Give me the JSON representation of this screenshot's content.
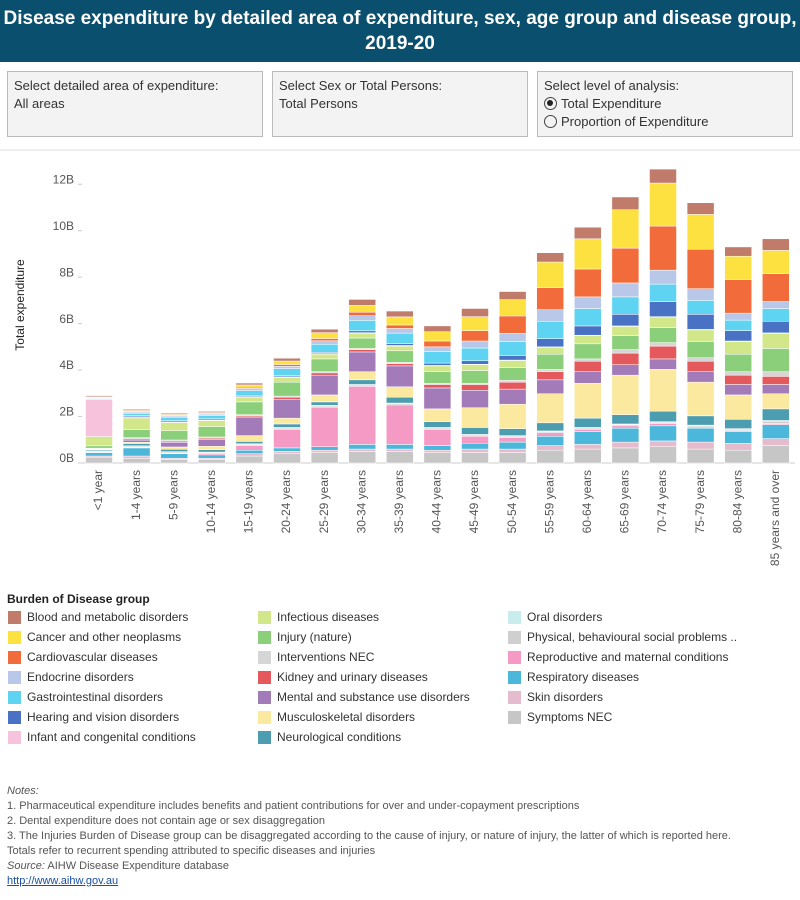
{
  "header": {
    "title": "Disease expenditure by detailed area of expenditure, sex, age group and disease group, 2019-20"
  },
  "filters": [
    {
      "label": "Select detailed area of expenditure:",
      "value": "All areas"
    },
    {
      "label": "Select Sex or Total Persons:",
      "value": "Total Persons"
    },
    {
      "label": "Select level of analysis:",
      "options": [
        "Total Expenditure",
        "Proportion of Expenditure"
      ]
    }
  ],
  "chart_data": {
    "type": "stacked_bar",
    "y_label": "Total expenditure",
    "ylim": [
      0,
      13.3
    ],
    "yticks": [
      {
        "value": 0,
        "label": "0B"
      },
      {
        "value": 2,
        "label": "2B"
      },
      {
        "value": 4,
        "label": "4B"
      },
      {
        "value": 6,
        "label": "6B"
      },
      {
        "value": 8,
        "label": "8B"
      },
      {
        "value": 10,
        "label": "10B"
      },
      {
        "value": 12,
        "label": "12B"
      }
    ],
    "categories": [
      "<1 year",
      "1-4 years",
      "5-9 years",
      "10-14 years",
      "15-19 years",
      "20-24 years",
      "25-29 years",
      "30-34 years",
      "35-39 years",
      "40-44 years",
      "45-49 years",
      "50-54 years",
      "55-59 years",
      "60-64 years",
      "65-69 years",
      "70-74 years",
      "75-79 years",
      "80-84 years",
      "85 years and over"
    ],
    "legend_title": "Burden of Disease group",
    "series": [
      {
        "name": "Blood and metabolic disorders",
        "color": "#c17b6b",
        "values": [
          0.05,
          0.05,
          0.05,
          0.05,
          0.08,
          0.12,
          0.15,
          0.25,
          0.25,
          0.25,
          0.35,
          0.35,
          0.4,
          0.5,
          0.55,
          0.6,
          0.5,
          0.4,
          0.5
        ]
      },
      {
        "name": "Cancer and other neoplasms",
        "color": "#fce141",
        "values": [
          0.02,
          0.05,
          0.05,
          0.05,
          0.1,
          0.15,
          0.25,
          0.3,
          0.35,
          0.4,
          0.6,
          0.7,
          1.1,
          1.3,
          1.65,
          1.85,
          1.5,
          1.0,
          1.0
        ]
      },
      {
        "name": "Cardiovascular diseases",
        "color": "#f26b3a",
        "values": [
          0.02,
          0.02,
          0.02,
          0.02,
          0.05,
          0.08,
          0.1,
          0.15,
          0.15,
          0.25,
          0.45,
          0.75,
          0.95,
          1.2,
          1.5,
          1.9,
          1.7,
          1.45,
          1.2
        ]
      },
      {
        "name": "Endocrine disorders",
        "color": "#b9c8e8",
        "values": [
          0.02,
          0.05,
          0.05,
          0.05,
          0.1,
          0.1,
          0.15,
          0.2,
          0.2,
          0.2,
          0.3,
          0.35,
          0.5,
          0.5,
          0.6,
          0.6,
          0.5,
          0.3,
          0.3
        ]
      },
      {
        "name": "Gastrointestinal disorders",
        "color": "#5ed4f2",
        "values": [
          0.03,
          0.1,
          0.15,
          0.15,
          0.2,
          0.3,
          0.35,
          0.45,
          0.45,
          0.5,
          0.55,
          0.6,
          0.75,
          0.75,
          0.75,
          0.75,
          0.6,
          0.45,
          0.55
        ]
      },
      {
        "name": "Hearing and vision disorders",
        "color": "#4a72c4",
        "values": [
          0.02,
          0.05,
          0.05,
          0.05,
          0.05,
          0.05,
          0.05,
          0.08,
          0.08,
          0.1,
          0.15,
          0.2,
          0.35,
          0.4,
          0.5,
          0.65,
          0.65,
          0.45,
          0.5
        ]
      },
      {
        "name": "Infant and congenital conditions",
        "color": "#f7c3dc",
        "values": [
          1.6,
          0.05,
          0.03,
          0.03,
          0.03,
          0.03,
          0.03,
          0.03,
          0.03,
          0.02,
          0.02,
          0.02,
          0.02,
          0.02,
          0.02,
          0.02,
          0.02,
          0.02,
          0.02
        ]
      },
      {
        "name": "Infectious diseases",
        "color": "#d2e68a",
        "values": [
          0.4,
          0.5,
          0.35,
          0.25,
          0.2,
          0.2,
          0.2,
          0.2,
          0.2,
          0.25,
          0.25,
          0.3,
          0.3,
          0.35,
          0.4,
          0.45,
          0.5,
          0.55,
          0.65
        ]
      },
      {
        "name": "Injury (nature)",
        "color": "#8ccf7a",
        "values": [
          0.1,
          0.35,
          0.4,
          0.45,
          0.55,
          0.6,
          0.55,
          0.45,
          0.5,
          0.5,
          0.55,
          0.55,
          0.65,
          0.65,
          0.6,
          0.65,
          0.7,
          0.75,
          1.0
        ]
      },
      {
        "name": "Interventions NEC",
        "color": "#d6d6d6",
        "values": [
          0.02,
          0.05,
          0.05,
          0.05,
          0.05,
          0.05,
          0.05,
          0.05,
          0.05,
          0.05,
          0.05,
          0.08,
          0.1,
          0.1,
          0.15,
          0.15,
          0.15,
          0.15,
          0.2
        ]
      },
      {
        "name": "Kidney and urinary diseases",
        "color": "#e4595c",
        "values": [
          0.03,
          0.05,
          0.05,
          0.05,
          0.05,
          0.1,
          0.1,
          0.1,
          0.1,
          0.15,
          0.25,
          0.3,
          0.35,
          0.45,
          0.5,
          0.55,
          0.45,
          0.4,
          0.35
        ]
      },
      {
        "name": "Mental and substance use disorders",
        "color": "#a47bb9",
        "values": [
          0.02,
          0.1,
          0.2,
          0.3,
          0.8,
          0.8,
          0.85,
          0.85,
          0.9,
          0.9,
          0.75,
          0.65,
          0.6,
          0.5,
          0.45,
          0.45,
          0.45,
          0.45,
          0.4
        ]
      },
      {
        "name": "Musculoskeletal disorders",
        "color": "#fbe9a0",
        "values": [
          0.02,
          0.05,
          0.1,
          0.15,
          0.25,
          0.25,
          0.3,
          0.35,
          0.45,
          0.55,
          0.85,
          1.05,
          1.25,
          1.5,
          1.7,
          1.8,
          1.45,
          1.05,
          0.65
        ]
      },
      {
        "name": "Neurological conditions",
        "color": "#4c9db0",
        "values": [
          0.05,
          0.1,
          0.1,
          0.1,
          0.1,
          0.15,
          0.15,
          0.2,
          0.25,
          0.25,
          0.3,
          0.3,
          0.35,
          0.4,
          0.4,
          0.45,
          0.4,
          0.4,
          0.5
        ]
      },
      {
        "name": "Oral disorders",
        "color": "#c9ecec",
        "values": [
          0.01,
          0.02,
          0.02,
          0.02,
          0.03,
          0.03,
          0.03,
          0.03,
          0.03,
          0.03,
          0.03,
          0.03,
          0.03,
          0.03,
          0.03,
          0.03,
          0.03,
          0.03,
          0.03
        ]
      },
      {
        "name": "Physical, behavioural social problems ..",
        "color": "#cfcfcf",
        "values": [
          0.02,
          0.05,
          0.05,
          0.05,
          0.05,
          0.05,
          0.05,
          0.05,
          0.05,
          0.05,
          0.05,
          0.05,
          0.05,
          0.05,
          0.05,
          0.05,
          0.05,
          0.05,
          0.1
        ]
      },
      {
        "name": "Reproductive and maternal conditions",
        "color": "#f59ac4",
        "values": [
          0.02,
          0.02,
          0.02,
          0.05,
          0.2,
          0.8,
          1.7,
          2.5,
          1.7,
          0.7,
          0.3,
          0.2,
          0.15,
          0.1,
          0.1,
          0.1,
          0.05,
          0.05,
          0.05
        ]
      },
      {
        "name": "Respiratory diseases",
        "color": "#4ab7db",
        "values": [
          0.15,
          0.35,
          0.2,
          0.15,
          0.15,
          0.15,
          0.15,
          0.2,
          0.2,
          0.2,
          0.25,
          0.3,
          0.4,
          0.55,
          0.6,
          0.65,
          0.6,
          0.5,
          0.6
        ]
      },
      {
        "name": "Skin disorders",
        "color": "#e4bccd",
        "values": [
          0.05,
          0.1,
          0.05,
          0.05,
          0.1,
          0.1,
          0.1,
          0.1,
          0.1,
          0.1,
          0.15,
          0.15,
          0.2,
          0.2,
          0.25,
          0.25,
          0.3,
          0.3,
          0.3
        ]
      },
      {
        "name": "Symptoms NEC",
        "color": "#c6c6c6",
        "values": [
          0.25,
          0.2,
          0.15,
          0.15,
          0.3,
          0.4,
          0.45,
          0.5,
          0.5,
          0.45,
          0.45,
          0.45,
          0.55,
          0.6,
          0.65,
          0.7,
          0.6,
          0.55,
          0.75
        ]
      }
    ]
  },
  "notes": {
    "heading": "Notes:",
    "lines": [
      "1.  Pharmaceutical expenditure includes benefits and patient contributions for over and under-copayment prescriptions",
      "2.  Dental expenditure does not contain age or sex disaggregation",
      "3. The Injuries Burden of Disease group can be disaggregated according to the cause of injury, or nature of injury, the latter of which is reported here.",
      "Totals refer to recurrent spending attributed to specific diseases and injuries"
    ],
    "source_label": "Source:",
    "source": "AIHW Disease Expenditure database",
    "link": "http://www.aihw.gov.au"
  }
}
